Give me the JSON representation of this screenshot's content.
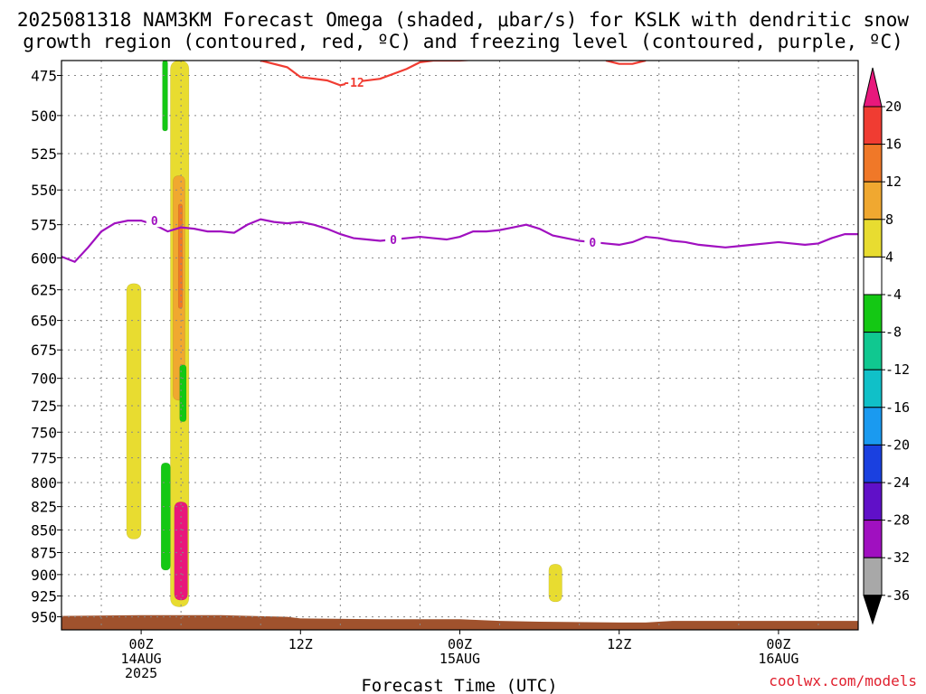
{
  "header": {
    "title_line1": "2025081318 NAM3KM Forecast Omega (shaded, μbar/s) for KSLK with dendritic snow",
    "title_line2": "growth region (contoured, red, ºC) and freezing level (contoured, purple, ºC)"
  },
  "credit": "coolwx.com/models",
  "chart_data": {
    "type": "heatmap",
    "xlabel": "Forecast Time (UTC)",
    "ylabel": "",
    "y_axis": "pressure (hPa), inverted",
    "ylim": [
      966,
      466
    ],
    "xlim_hours": [
      -6,
      54
    ],
    "y_ticks": [
      475,
      500,
      525,
      550,
      575,
      600,
      625,
      650,
      675,
      700,
      725,
      750,
      775,
      800,
      825,
      850,
      875,
      900,
      925,
      950
    ],
    "x_ticks": [
      {
        "hour": 0,
        "lines": [
          "00Z",
          "14AUG",
          "2025"
        ]
      },
      {
        "hour": 12,
        "lines": [
          "12Z"
        ]
      },
      {
        "hour": 24,
        "lines": [
          "00Z",
          "15AUG"
        ]
      },
      {
        "hour": 36,
        "lines": [
          "12Z"
        ]
      },
      {
        "hour": 48,
        "lines": [
          "00Z",
          "16AUG"
        ]
      }
    ],
    "grid": true,
    "colorbar": {
      "ticks": [
        20,
        16,
        12,
        8,
        4,
        -4,
        -8,
        -12,
        -16,
        -20,
        -24,
        -28,
        -32,
        -36
      ],
      "levels": [
        {
          "range": ">20",
          "color": "#e8187c"
        },
        {
          "range": "16..20",
          "color": "#f03c32"
        },
        {
          "range": "12..16",
          "color": "#f07828"
        },
        {
          "range": "8..12",
          "color": "#f0a830"
        },
        {
          "range": "4..8",
          "color": "#e8dc30"
        },
        {
          "range": "-4..4",
          "color": "#ffffff"
        },
        {
          "range": "-8..-4",
          "color": "#14c814"
        },
        {
          "range": "-12..-8",
          "color": "#10c890"
        },
        {
          "range": "-16..-12",
          "color": "#10c0c8"
        },
        {
          "range": "-20..-16",
          "color": "#1a9af0"
        },
        {
          "range": "-24..-20",
          "color": "#1a40e0"
        },
        {
          "range": "-28..-24",
          "color": "#6010c8"
        },
        {
          "range": "-32..-28",
          "color": "#a010c0"
        },
        {
          "range": "-36..-32",
          "color": "#a8a8a8"
        },
        {
          "range": "<-36",
          "color": "#000000"
        }
      ]
    },
    "series": [
      {
        "name": "freezing level",
        "label": "0",
        "color": "#a010c0",
        "points": [
          [
            -6,
            599
          ],
          [
            -5,
            603
          ],
          [
            -4,
            592
          ],
          [
            -3,
            580
          ],
          [
            -2,
            574
          ],
          [
            -1,
            572
          ],
          [
            0,
            572
          ],
          [
            1,
            575
          ],
          [
            2,
            580
          ],
          [
            3,
            577
          ],
          [
            4,
            578
          ],
          [
            5,
            580
          ],
          [
            6,
            580
          ],
          [
            7,
            581
          ],
          [
            8,
            575
          ],
          [
            9,
            571
          ],
          [
            10,
            573
          ],
          [
            11,
            574
          ],
          [
            12,
            573
          ],
          [
            13,
            575
          ],
          [
            14,
            578
          ],
          [
            15,
            582
          ],
          [
            16,
            585
          ],
          [
            17,
            586
          ],
          [
            18,
            587
          ],
          [
            19,
            586
          ],
          [
            20,
            585
          ],
          [
            21,
            584
          ],
          [
            22,
            585
          ],
          [
            23,
            586
          ],
          [
            24,
            584
          ],
          [
            25,
            580
          ],
          [
            26,
            580
          ],
          [
            27,
            579
          ],
          [
            28,
            577
          ],
          [
            29,
            575
          ],
          [
            30,
            578
          ],
          [
            31,
            583
          ],
          [
            32,
            585
          ],
          [
            33,
            587
          ],
          [
            34,
            588
          ],
          [
            35,
            589
          ],
          [
            36,
            590
          ],
          [
            37,
            588
          ],
          [
            38,
            584
          ],
          [
            39,
            585
          ],
          [
            40,
            587
          ],
          [
            41,
            588
          ],
          [
            42,
            590
          ],
          [
            43,
            591
          ],
          [
            44,
            592
          ],
          [
            45,
            591
          ],
          [
            46,
            590
          ],
          [
            47,
            589
          ],
          [
            48,
            588
          ],
          [
            49,
            589
          ],
          [
            50,
            590
          ],
          [
            51,
            589
          ],
          [
            52,
            585
          ],
          [
            53,
            582
          ],
          [
            54,
            582
          ]
        ]
      },
      {
        "name": "dendritic growth region",
        "label": "-12",
        "color": "#f03c32",
        "points": [
          [
            9,
            466
          ],
          [
            11,
            470
          ],
          [
            12,
            476
          ],
          [
            14,
            478
          ],
          [
            15,
            481
          ],
          [
            16,
            479
          ],
          [
            18,
            477
          ],
          [
            20,
            471
          ],
          [
            21,
            467
          ],
          [
            22,
            466
          ],
          [
            24,
            466
          ],
          [
            26,
            465
          ]
        ],
        "points2": [
          [
            35,
            466
          ],
          [
            36,
            468
          ],
          [
            37,
            468
          ],
          [
            38,
            466
          ]
        ]
      }
    ],
    "omega_blobs": [
      {
        "level": "4..8",
        "hour_min": 2.2,
        "hour_max": 3.6,
        "p_top": 466,
        "p_bottom": 938
      },
      {
        "level": "8..12",
        "hour_min": 2.4,
        "hour_max": 3.3,
        "p_top": 540,
        "p_bottom": 720
      },
      {
        "level": "12..16",
        "hour_min": 2.8,
        "hour_max": 3.1,
        "p_top": 560,
        "p_bottom": 640
      },
      {
        "level": "4..8",
        "hour_min": -1.1,
        "hour_max": 0,
        "p_top": 620,
        "p_bottom": 860
      },
      {
        "level": ">20",
        "hour_min": 2.5,
        "hour_max": 3.5,
        "p_top": 820,
        "p_bottom": 930
      },
      {
        "level": "-8..-4",
        "hour_min": 1.5,
        "hour_max": 2.2,
        "p_top": 780,
        "p_bottom": 895
      },
      {
        "level": "-8..-4",
        "hour_min": 1.6,
        "hour_max": 2.0,
        "p_top": 466,
        "p_bottom": 510
      },
      {
        "level": "-8..-4",
        "hour_min": 2.9,
        "hour_max": 3.4,
        "p_top": 688,
        "p_bottom": 740
      },
      {
        "level": "4..8",
        "hour_min": 30.7,
        "hour_max": 31.7,
        "p_top": 888,
        "p_bottom": 932
      }
    ],
    "terrain": {
      "color": "#a0522d",
      "points": [
        [
          -6,
          949
        ],
        [
          0,
          948
        ],
        [
          6,
          948
        ],
        [
          11,
          950
        ],
        [
          12,
          952
        ],
        [
          18,
          953
        ],
        [
          24,
          953
        ],
        [
          27,
          955
        ],
        [
          30,
          956
        ],
        [
          36,
          957
        ],
        [
          38,
          957
        ],
        [
          40,
          955
        ],
        [
          48,
          955
        ],
        [
          54,
          955
        ]
      ]
    }
  }
}
